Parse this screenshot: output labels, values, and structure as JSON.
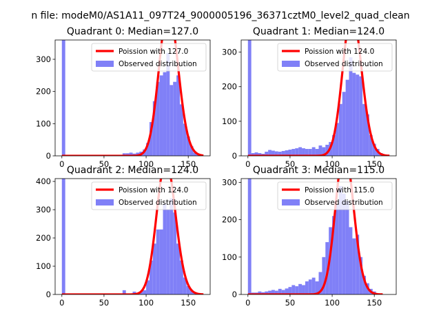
{
  "figure": {
    "suptitle": "n file: modeM0/AS1A11_097T24_9000005196_36371cztM0_level2_quad_clean"
  },
  "colors": {
    "poisson": "#ff0000",
    "observed": "#8080f7",
    "axis": "#000000"
  },
  "chart_data": [
    {
      "type": "histogram",
      "title": "Quadrant 0: Median=127.0",
      "xlabel": "",
      "ylabel": "",
      "xlim": [
        -8,
        176
      ],
      "ylim": [
        0,
        360
      ],
      "xticks": [
        0,
        50,
        100,
        150
      ],
      "yticks": [
        0,
        100,
        200,
        300
      ],
      "legend_position": "upper right",
      "legend": [
        "Poission with 127.0",
        "Observed distribution"
      ],
      "poisson_mean": 127.0,
      "poisson_scale": 12900,
      "poisson_range": [
        0,
        168
      ],
      "bin_width": 4,
      "bins": [
        [
          0,
          4,
          360
        ],
        [
          72,
          76,
          8
        ],
        [
          76,
          80,
          8
        ],
        [
          80,
          84,
          10
        ],
        [
          84,
          88,
          7
        ],
        [
          88,
          92,
          10
        ],
        [
          92,
          96,
          13
        ],
        [
          96,
          100,
          20
        ],
        [
          100,
          104,
          40
        ],
        [
          104,
          108,
          105
        ],
        [
          108,
          112,
          170
        ],
        [
          112,
          116,
          230
        ],
        [
          116,
          120,
          250
        ],
        [
          120,
          124,
          260
        ],
        [
          124,
          128,
          320
        ],
        [
          128,
          132,
          220
        ],
        [
          132,
          136,
          230
        ],
        [
          136,
          140,
          250
        ],
        [
          140,
          144,
          160
        ],
        [
          144,
          148,
          100
        ],
        [
          148,
          152,
          60
        ],
        [
          152,
          156,
          30
        ],
        [
          156,
          160,
          10
        ],
        [
          160,
          164,
          3
        ]
      ]
    },
    {
      "type": "histogram",
      "title": "Quadrant 1: Median=124.0",
      "xlabel": "",
      "ylabel": "",
      "xlim": [
        -8,
        176
      ],
      "ylim": [
        0,
        335
      ],
      "xticks": [
        0,
        50,
        100,
        150
      ],
      "yticks": [
        0,
        100,
        200,
        300
      ],
      "legend_position": "upper right",
      "legend": [
        "Poission with 124.0",
        "Observed distribution"
      ],
      "poisson_mean": 124.0,
      "poisson_scale": 11600,
      "poisson_range": [
        0,
        168
      ],
      "bin_width": 4,
      "bins": [
        [
          0,
          4,
          335
        ],
        [
          4,
          8,
          8
        ],
        [
          8,
          12,
          10
        ],
        [
          12,
          16,
          8
        ],
        [
          16,
          20,
          6
        ],
        [
          20,
          24,
          12
        ],
        [
          24,
          28,
          17
        ],
        [
          28,
          32,
          15
        ],
        [
          32,
          36,
          13
        ],
        [
          36,
          40,
          12
        ],
        [
          40,
          44,
          14
        ],
        [
          44,
          48,
          16
        ],
        [
          48,
          52,
          18
        ],
        [
          52,
          56,
          20
        ],
        [
          56,
          60,
          22
        ],
        [
          60,
          64,
          25
        ],
        [
          64,
          68,
          22
        ],
        [
          68,
          72,
          20
        ],
        [
          72,
          76,
          20
        ],
        [
          76,
          80,
          25
        ],
        [
          80,
          84,
          20
        ],
        [
          84,
          88,
          30
        ],
        [
          88,
          92,
          25
        ],
        [
          92,
          96,
          32
        ],
        [
          96,
          100,
          40
        ],
        [
          100,
          104,
          60
        ],
        [
          104,
          108,
          95
        ],
        [
          108,
          112,
          150
        ],
        [
          112,
          116,
          185
        ],
        [
          116,
          120,
          220
        ],
        [
          120,
          124,
          285
        ],
        [
          124,
          128,
          240
        ],
        [
          128,
          132,
          235
        ],
        [
          132,
          136,
          230
        ],
        [
          136,
          140,
          150
        ],
        [
          140,
          144,
          120
        ],
        [
          144,
          148,
          60
        ],
        [
          148,
          152,
          35
        ],
        [
          152,
          156,
          20
        ],
        [
          156,
          160,
          8
        ]
      ]
    },
    {
      "type": "histogram",
      "title": "Quadrant 2: Median=124.0",
      "xlabel": "",
      "ylabel": "",
      "xlim": [
        -8,
        176
      ],
      "ylim": [
        0,
        410
      ],
      "xticks": [
        0,
        50,
        100,
        150
      ],
      "yticks": [
        0,
        100,
        200,
        300,
        400
      ],
      "legend_position": "upper right",
      "legend": [
        "Poission with 124.0",
        "Observed distribution"
      ],
      "poisson_mean": 124.0,
      "poisson_scale": 13200,
      "poisson_range": [
        0,
        168
      ],
      "bin_width": 4,
      "bins": [
        [
          0,
          4,
          410
        ],
        [
          72,
          76,
          15
        ],
        [
          84,
          88,
          10
        ],
        [
          92,
          96,
          10
        ],
        [
          96,
          100,
          15
        ],
        [
          100,
          104,
          50
        ],
        [
          104,
          108,
          120
        ],
        [
          108,
          112,
          180
        ],
        [
          112,
          116,
          230
        ],
        [
          116,
          120,
          230
        ],
        [
          120,
          124,
          320
        ],
        [
          124,
          128,
          300
        ],
        [
          128,
          132,
          340
        ],
        [
          132,
          136,
          290
        ],
        [
          136,
          140,
          180
        ],
        [
          140,
          144,
          120
        ],
        [
          144,
          148,
          60
        ],
        [
          148,
          152,
          30
        ],
        [
          152,
          156,
          15
        ],
        [
          156,
          160,
          8
        ],
        [
          160,
          164,
          5
        ]
      ]
    },
    {
      "type": "histogram",
      "title": "Quadrant 3: Median=115.0",
      "xlabel": "",
      "ylabel": "",
      "xlim": [
        -8,
        176
      ],
      "ylim": [
        0,
        310
      ],
      "xticks": [
        0,
        50,
        100,
        150
      ],
      "yticks": [
        0,
        100,
        200,
        300
      ],
      "legend_position": "upper right",
      "legend": [
        "Poission with 115.0",
        "Observed distribution"
      ],
      "poisson_mean": 115.0,
      "poisson_scale": 10400,
      "poisson_range": [
        0,
        160
      ],
      "bin_width": 4,
      "bins": [
        [
          0,
          4,
          310
        ],
        [
          4,
          8,
          5
        ],
        [
          8,
          12,
          5
        ],
        [
          12,
          16,
          8
        ],
        [
          16,
          20,
          6
        ],
        [
          20,
          24,
          8
        ],
        [
          24,
          28,
          10
        ],
        [
          28,
          32,
          12
        ],
        [
          32,
          36,
          10
        ],
        [
          36,
          40,
          15
        ],
        [
          40,
          44,
          12
        ],
        [
          44,
          48,
          16
        ],
        [
          48,
          52,
          20
        ],
        [
          52,
          56,
          25
        ],
        [
          56,
          60,
          22
        ],
        [
          60,
          64,
          28
        ],
        [
          64,
          68,
          25
        ],
        [
          68,
          72,
          35
        ],
        [
          72,
          76,
          40
        ],
        [
          76,
          80,
          45
        ],
        [
          80,
          84,
          35
        ],
        [
          84,
          88,
          60
        ],
        [
          88,
          92,
          100
        ],
        [
          92,
          96,
          140
        ],
        [
          96,
          100,
          180
        ],
        [
          100,
          104,
          210
        ],
        [
          104,
          108,
          240
        ],
        [
          108,
          112,
          290
        ],
        [
          112,
          116,
          270
        ],
        [
          116,
          120,
          250
        ],
        [
          120,
          124,
          180
        ],
        [
          124,
          128,
          150
        ],
        [
          128,
          132,
          160
        ],
        [
          132,
          136,
          100
        ],
        [
          136,
          140,
          50
        ],
        [
          140,
          144,
          30
        ],
        [
          144,
          148,
          15
        ],
        [
          148,
          152,
          8
        ]
      ]
    }
  ]
}
